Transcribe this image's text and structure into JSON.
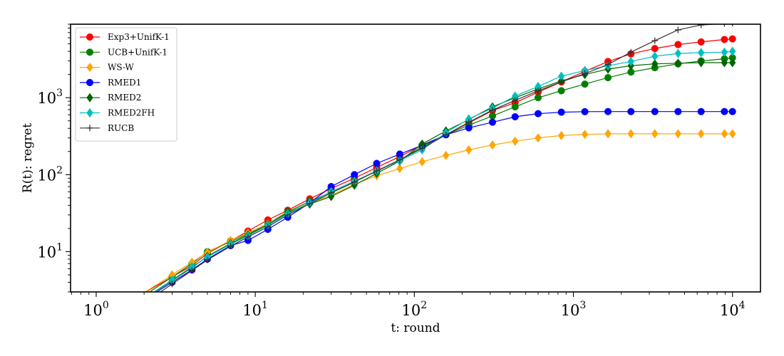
{
  "chart_data": {
    "type": "line",
    "title": "",
    "xlabel": "t: round",
    "ylabel": "R(t): regret",
    "xscale": "log",
    "yscale": "log",
    "xlim": [
      0.69,
      15000
    ],
    "ylim": [
      3,
      9000
    ],
    "xticks": [
      {
        "value": 1,
        "base": "10",
        "exp": "0"
      },
      {
        "value": 10,
        "base": "10",
        "exp": "1"
      },
      {
        "value": 100,
        "base": "10",
        "exp": "2"
      },
      {
        "value": 1000,
        "base": "10",
        "exp": "3"
      },
      {
        "value": 10000,
        "base": "10",
        "exp": "4"
      }
    ],
    "yticks": [
      {
        "value": 10,
        "base": "10",
        "exp": "1"
      },
      {
        "value": 100,
        "base": "10",
        "exp": "2"
      },
      {
        "value": 1000,
        "base": "10",
        "exp": "3"
      }
    ],
    "grid": false,
    "legend_position": "upper-left",
    "series": [
      {
        "name": "Exp3+UnifK-1",
        "color": "#ff0000",
        "marker": "circle",
        "x": [
          3,
          4,
          5,
          7,
          9,
          12,
          16,
          22,
          30,
          42,
          58,
          81,
          112,
          158,
          220,
          310,
          430,
          600,
          840,
          1180,
          1650,
          2300,
          3250,
          4550,
          6350,
          8900,
          10000
        ],
        "y": [
          4.7,
          6.6,
          9.5,
          13.8,
          18.5,
          25.8,
          34.5,
          48.5,
          66,
          90,
          124,
          172,
          242,
          330,
          470,
          680,
          860,
          1180,
          1600,
          2200,
          2950,
          3700,
          4350,
          4900,
          5300,
          5700,
          5800
        ]
      },
      {
        "name": "UCB+UnifK-1",
        "color": "#008000",
        "marker": "circle",
        "x": [
          3,
          4,
          5,
          7,
          9,
          12,
          16,
          22,
          30,
          42,
          58,
          81,
          112,
          158,
          220,
          310,
          430,
          600,
          840,
          1180,
          1650,
          2300,
          3250,
          4550,
          6350,
          8900,
          10000
        ],
        "y": [
          4.7,
          7,
          10,
          13.5,
          17,
          23,
          33,
          45,
          59,
          82,
          110,
          155,
          230,
          330,
          440,
          580,
          760,
          1000,
          1230,
          1500,
          1820,
          2150,
          2450,
          2750,
          3000,
          3200,
          3300
        ]
      },
      {
        "name": "WS-W",
        "color": "#ffa500",
        "marker": "diamond",
        "x": [
          3,
          4,
          5,
          7,
          9,
          12,
          16,
          22,
          30,
          42,
          58,
          81,
          112,
          158,
          220,
          310,
          430,
          600,
          840,
          1180,
          1650,
          2300,
          3250,
          4550,
          6350,
          8900,
          10000
        ],
        "y": [
          5,
          7.3,
          9.8,
          14,
          17.5,
          23,
          32,
          43,
          54,
          75,
          97,
          120,
          147,
          178,
          210,
          243,
          272,
          300,
          322,
          334,
          340,
          340,
          340,
          340,
          340,
          340,
          340
        ]
      },
      {
        "name": "RMED1",
        "color": "#0000ff",
        "marker": "circle",
        "x": [
          3,
          4,
          5,
          7,
          9,
          12,
          16,
          22,
          30,
          42,
          58,
          81,
          112,
          158,
          220,
          310,
          430,
          600,
          840,
          1180,
          1650,
          2300,
          3250,
          4550,
          6350,
          8900,
          10000
        ],
        "y": [
          4,
          5.8,
          8,
          12,
          14,
          19.5,
          28,
          43,
          70,
          100,
          140,
          185,
          240,
          330,
          405,
          480,
          565,
          620,
          648,
          658,
          660,
          660,
          660,
          660,
          660,
          660,
          660
        ]
      },
      {
        "name": "RMED2",
        "color": "#006400",
        "marker": "diamond",
        "x": [
          3,
          4,
          5,
          7,
          9,
          12,
          16,
          22,
          30,
          42,
          58,
          81,
          112,
          158,
          220,
          310,
          430,
          600,
          840,
          1180,
          1650,
          2300,
          3250,
          4550,
          6350,
          8900,
          10000
        ],
        "y": [
          4.2,
          6.2,
          8.7,
          12.8,
          16.5,
          22.5,
          32,
          41.5,
          52,
          73,
          104,
          150,
          250,
          370,
          520,
          760,
          1000,
          1300,
          1650,
          2000,
          2350,
          2600,
          2750,
          2800,
          2850,
          2850,
          2850
        ]
      },
      {
        "name": "RMED2FH",
        "color": "#00bfbf",
        "marker": "diamond",
        "x": [
          3,
          4,
          5,
          7,
          9,
          12,
          16,
          22,
          30,
          42,
          58,
          81,
          112,
          158,
          220,
          310,
          430,
          600,
          840,
          1180,
          1650,
          2300,
          3250,
          4550,
          6350,
          8900,
          10000
        ],
        "y": [
          4.3,
          6.4,
          8.5,
          12.5,
          16,
          22,
          31,
          43,
          60,
          82,
          112,
          152,
          210,
          350,
          530,
          730,
          1050,
          1400,
          1900,
          2250,
          2600,
          2950,
          3450,
          3750,
          3850,
          3900,
          4000
        ]
      },
      {
        "name": "RUCB",
        "color": "#333333",
        "marker": "plus",
        "x": [
          3,
          4,
          5,
          7,
          9,
          12,
          16,
          22,
          30,
          42,
          58,
          81,
          112,
          158,
          220,
          310,
          430,
          600,
          840,
          1180,
          1650,
          2300,
          3250,
          4550,
          6350,
          8900,
          10000
        ],
        "y": [
          3.8,
          5.7,
          7.8,
          11.8,
          15.5,
          21,
          30,
          42,
          58,
          80,
          112,
          156,
          220,
          330,
          480,
          690,
          920,
          1230,
          1600,
          2050,
          2700,
          3900,
          5500,
          7600,
          8800,
          9200,
          9300
        ]
      }
    ]
  }
}
